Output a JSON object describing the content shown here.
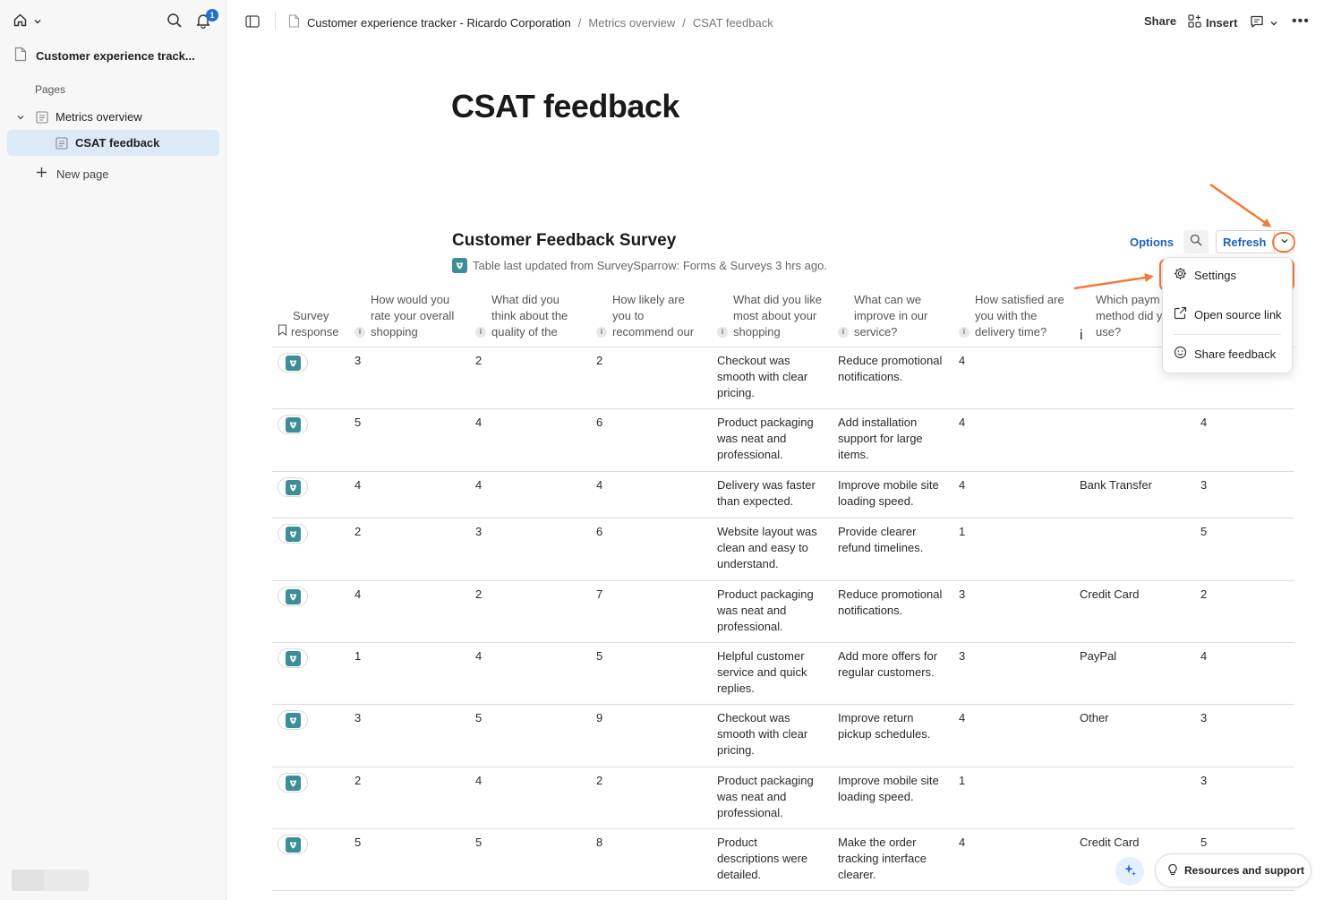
{
  "sidebar": {
    "doc_title": "Customer experience track...",
    "notification_count": "1",
    "pages_label": "Pages",
    "items": [
      {
        "label": "Metrics overview"
      },
      {
        "label": "CSAT feedback"
      }
    ],
    "new_page_label": "New page"
  },
  "header": {
    "breadcrumb": [
      "Customer experience tracker - Ricardo Corporation",
      "Metrics overview",
      "CSAT feedback"
    ],
    "breadcrumb_sep": "/",
    "share_label": "Share",
    "insert_label": "Insert",
    "more_label": "•••"
  },
  "page": {
    "title": "CSAT feedback"
  },
  "table": {
    "title": "Customer Feedback Survey",
    "subtitle": "Table last updated from SurveySparrow: Forms & Surveys 3 hrs ago.",
    "options_label": "Options",
    "refresh_label": "Refresh",
    "columns": [
      [
        "Survey",
        "response"
      ],
      [
        "How would you",
        "rate your overall",
        "shopping"
      ],
      [
        "What did you",
        "think about the",
        "quality of the"
      ],
      [
        "How likely are",
        "you to",
        "recommend our"
      ],
      [
        "What did you like",
        "most about your",
        "shopping"
      ],
      [
        "What can we",
        "improve in our",
        "service?"
      ],
      [
        "How satisfied are",
        "you with the",
        "delivery time?"
      ],
      [
        "Which paym",
        "method did y",
        "use?"
      ]
    ],
    "rows": [
      {
        "c1": "3",
        "c2": "2",
        "c3": "2",
        "c4": [
          "Checkout was",
          "smooth with clear",
          "pricing."
        ],
        "c5": [
          "Reduce promotional",
          "notifications."
        ],
        "c6": "4",
        "c7": "",
        "c8": ""
      },
      {
        "c1": "5",
        "c2": "4",
        "c3": "6",
        "c4": [
          "Product packaging",
          "was neat and",
          "professional."
        ],
        "c5": [
          "Add installation",
          "support for large",
          "items."
        ],
        "c6": "4",
        "c7": "",
        "c8": "4"
      },
      {
        "c1": "4",
        "c2": "4",
        "c3": "4",
        "c4": [
          "Delivery was faster",
          "than expected."
        ],
        "c5": [
          "Improve mobile site",
          "loading speed."
        ],
        "c6": "4",
        "c7": "Bank Transfer",
        "c8": "3"
      },
      {
        "c1": "2",
        "c2": "3",
        "c3": "6",
        "c4": [
          "Website layout was",
          "clean and easy to",
          "understand."
        ],
        "c5": [
          "Provide clearer",
          "refund timelines."
        ],
        "c6": "1",
        "c7": "",
        "c8": "5"
      },
      {
        "c1": "4",
        "c2": "2",
        "c3": "7",
        "c4": [
          "Product packaging",
          "was neat and",
          "professional."
        ],
        "c5": [
          "Reduce promotional",
          "notifications."
        ],
        "c6": "3",
        "c7": "Credit Card",
        "c8": "2"
      },
      {
        "c1": "1",
        "c2": "4",
        "c3": "5",
        "c4": [
          "Helpful customer",
          "service and quick",
          "replies."
        ],
        "c5": [
          "Add more offers for",
          "regular customers."
        ],
        "c6": "3",
        "c7": "PayPal",
        "c8": "4"
      },
      {
        "c1": "3",
        "c2": "5",
        "c3": "9",
        "c4": [
          "Checkout was",
          "smooth with clear",
          "pricing."
        ],
        "c5": [
          "Improve return",
          "pickup schedules."
        ],
        "c6": "4",
        "c7": "Other",
        "c8": "3"
      },
      {
        "c1": "2",
        "c2": "4",
        "c3": "2",
        "c4": [
          "Product packaging",
          "was neat and",
          "professional."
        ],
        "c5": [
          "Improve mobile site",
          "loading speed."
        ],
        "c6": "1",
        "c7": "",
        "c8": "3"
      },
      {
        "c1": "5",
        "c2": "5",
        "c3": "8",
        "c4": [
          "Product",
          "descriptions were",
          "detailed."
        ],
        "c5": [
          "Make the order",
          "tracking interface",
          "clearer."
        ],
        "c6": "4",
        "c7": "Credit Card",
        "c8": "5"
      }
    ]
  },
  "dropdown": {
    "items": [
      "Settings",
      "Open source link",
      "Share feedback"
    ]
  },
  "footer": {
    "resources_label": "Resources and support"
  },
  "colors": {
    "accent": "#1f62b8",
    "highlight": "#f07b3a",
    "selected": "#dce9f7",
    "surveysparrow": "#3d8f97"
  }
}
